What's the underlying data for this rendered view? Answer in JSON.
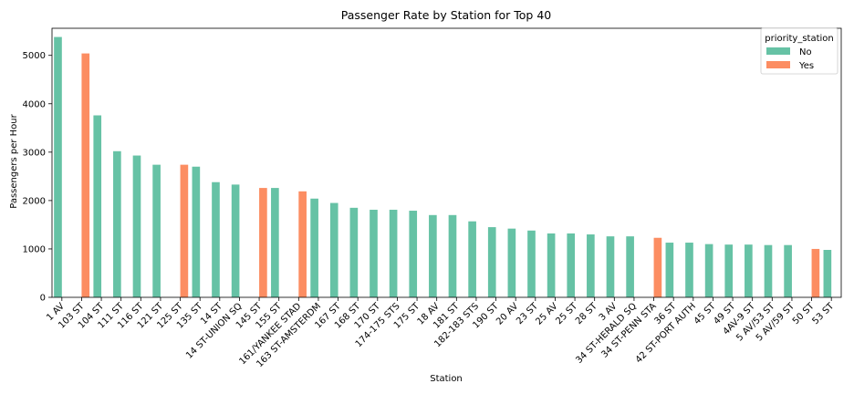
{
  "chart_data": {
    "type": "bar",
    "title": "Passenger Rate by Station for Top 40",
    "xlabel": "Station",
    "ylabel": "Passengers per Hour",
    "ylim": [
      0,
      5560
    ],
    "yticks": [
      0,
      1000,
      2000,
      3000,
      4000,
      5000
    ],
    "grid": false,
    "legend": {
      "title": "priority_station",
      "placement": "top-right",
      "entries": [
        {
          "name": "No",
          "color": "#66c2a5"
        },
        {
          "name": "Yes",
          "color": "#fc8d62"
        }
      ]
    },
    "categories": [
      "1 AV",
      "103 ST",
      "104 ST",
      "111 ST",
      "116 ST",
      "121 ST",
      "125 ST",
      "135 ST",
      "14 ST",
      "14 ST-UNION SQ",
      "145 ST",
      "155 ST",
      "161/YANKEE STAD",
      "163 ST-AMSTERDM",
      "167 ST",
      "168 ST",
      "170 ST",
      "174-175 STS",
      "175 ST",
      "18 AV",
      "181 ST",
      "182-183 STS",
      "190 ST",
      "20 AV",
      "23 ST",
      "25 AV",
      "25 ST",
      "28 ST",
      "3 AV",
      "34 ST-HERALD SQ",
      "34 ST-PENN STA",
      "36 ST",
      "42 ST-PORT AUTH",
      "45 ST",
      "49 ST",
      "4AV-9 ST",
      "5 AV/53 ST",
      "5 AV/59 ST",
      "50 ST",
      "53 ST"
    ],
    "series": [
      {
        "name": "No",
        "values": [
          5380,
          null,
          3760,
          3020,
          2930,
          2740,
          null,
          2700,
          2380,
          2330,
          null,
          2260,
          null,
          2040,
          1950,
          1850,
          1810,
          1810,
          1790,
          1700,
          1700,
          1570,
          1450,
          1420,
          1380,
          1320,
          1320,
          1300,
          1260,
          1260,
          null,
          1130,
          1130,
          1100,
          1090,
          1090,
          1080,
          1080,
          null,
          980
        ]
      },
      {
        "name": "Yes",
        "values": [
          null,
          5040,
          null,
          null,
          null,
          null,
          2740,
          null,
          null,
          null,
          2260,
          null,
          2190,
          null,
          null,
          null,
          null,
          null,
          null,
          null,
          null,
          null,
          null,
          null,
          null,
          null,
          null,
          null,
          null,
          null,
          1230,
          null,
          null,
          null,
          null,
          null,
          null,
          null,
          1000,
          null
        ]
      }
    ]
  }
}
